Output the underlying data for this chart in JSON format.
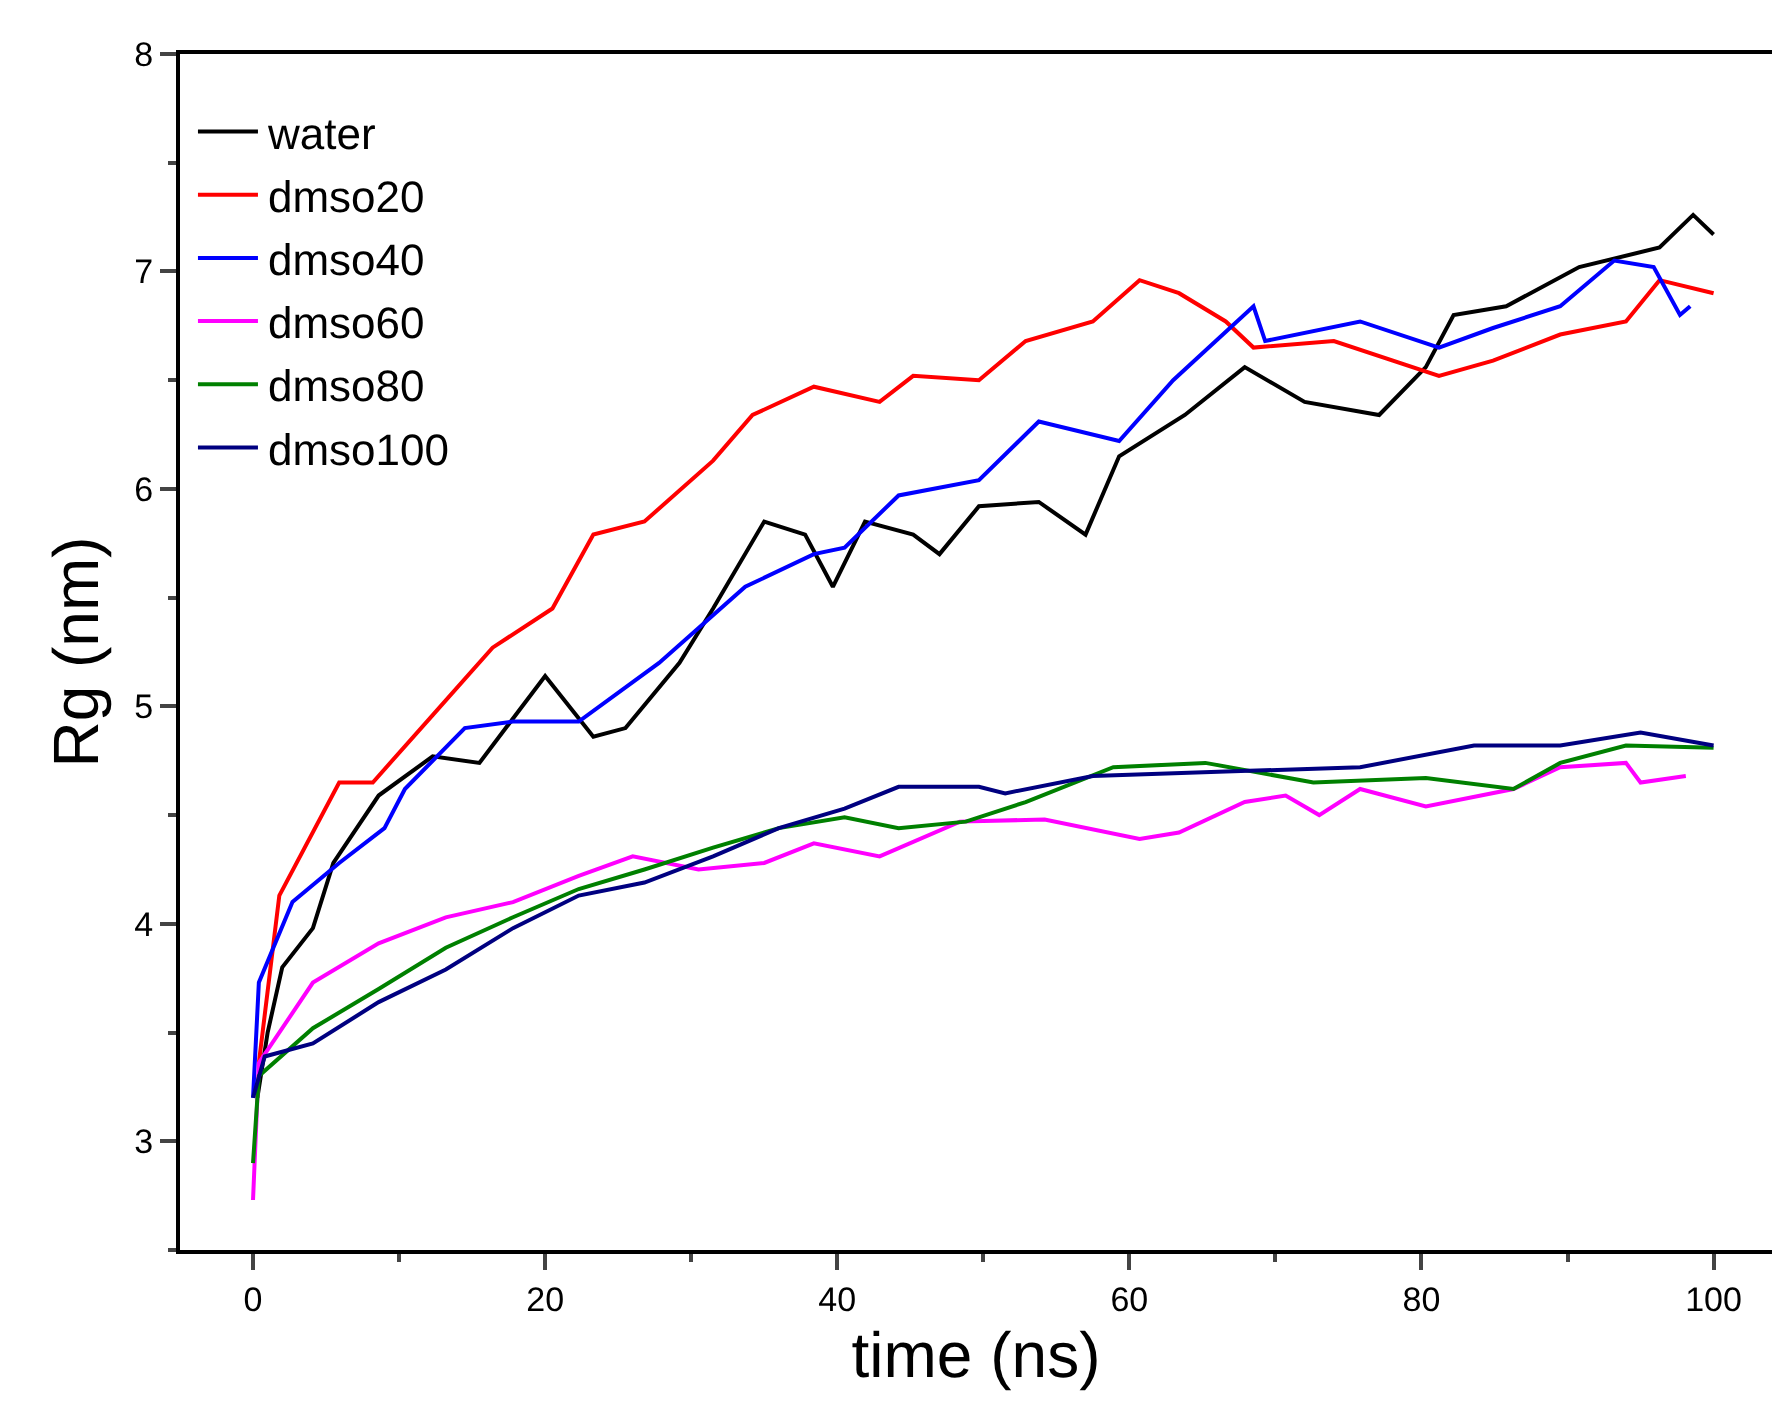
{
  "chart_data": {
    "type": "line",
    "xlabel": "time (ns)",
    "ylabel": "Rg (nm)",
    "xlim": [
      -5,
      104
    ],
    "ylim": [
      2.5,
      8
    ],
    "xticks": [
      0,
      20,
      40,
      60,
      80,
      100
    ],
    "yticks": [
      3,
      4,
      5,
      6,
      7,
      8
    ],
    "grid": false,
    "legend": "top left",
    "marker": "none",
    "line_style": "solid",
    "series": [
      {
        "name": "water",
        "color": "#000000",
        "x": [
          0.3,
          1,
          2,
          4.1,
          5.5,
          8.6,
          12.3,
          15.5,
          20,
          23.3,
          25.5,
          29.2,
          31.5,
          35,
          37.8,
          39.7,
          41.9,
          45.2,
          47,
          49.7,
          53.8,
          57,
          59.3,
          63.8,
          67.9,
          72,
          77.1,
          80.3,
          82.2,
          85.8,
          90.8,
          96.3,
          98.6,
          100
        ],
        "values": [
          3.2,
          3.5,
          3.8,
          3.98,
          4.28,
          4.59,
          4.77,
          4.74,
          5.14,
          4.86,
          4.9,
          5.2,
          5.45,
          5.85,
          5.79,
          5.55,
          5.85,
          5.79,
          5.7,
          5.92,
          5.94,
          5.79,
          6.15,
          6.34,
          6.56,
          6.4,
          6.34,
          6.56,
          6.8,
          6.84,
          7.02,
          7.11,
          7.26,
          7.17
        ]
      },
      {
        "name": "dmso20",
        "color": "#ff0000",
        "x": [
          0.4,
          1.8,
          5.9,
          8.2,
          12.3,
          16.4,
          20.5,
          23.3,
          26.8,
          31.5,
          34.2,
          38.4,
          42.9,
          45.2,
          49.7,
          52.9,
          57.5,
          60.7,
          63.4,
          66.6,
          68.5,
          74,
          81.2,
          84.9,
          89.5,
          94,
          96.3,
          100
        ],
        "values": [
          3.36,
          4.13,
          4.65,
          4.65,
          4.96,
          5.27,
          5.45,
          5.79,
          5.85,
          6.13,
          6.34,
          6.47,
          6.4,
          6.52,
          6.5,
          6.68,
          6.77,
          6.96,
          6.9,
          6.77,
          6.65,
          6.68,
          6.52,
          6.59,
          6.71,
          6.77,
          6.96,
          6.9
        ]
      },
      {
        "name": "dmso40",
        "color": "#0000ff",
        "x": [
          0,
          0.4,
          2.7,
          5.9,
          9,
          10.4,
          14.5,
          17.8,
          22.3,
          27.8,
          33.7,
          38.4,
          40.5,
          44.2,
          49.7,
          53.8,
          59.3,
          63,
          68.5,
          69.3,
          75.8,
          81.2,
          84.9,
          89.5,
          93.2,
          95.9,
          97.7,
          98.4
        ],
        "values": [
          3.2,
          3.73,
          4.1,
          4.28,
          4.44,
          4.62,
          4.9,
          4.93,
          4.93,
          5.2,
          5.55,
          5.7,
          5.73,
          5.97,
          6.04,
          6.31,
          6.22,
          6.5,
          6.84,
          6.68,
          6.77,
          6.65,
          6.74,
          6.84,
          7.05,
          7.02,
          6.8,
          6.84
        ]
      },
      {
        "name": "dmso60",
        "color": "#ff00ff",
        "x": [
          0,
          0.4,
          4.1,
          8.6,
          13.2,
          17.8,
          22.3,
          26,
          30.5,
          35,
          38.4,
          42.9,
          48.4,
          54.2,
          60.7,
          63.4,
          67.9,
          70.7,
          73,
          75.8,
          80.3,
          86.3,
          89.5,
          94,
          95,
          98.1
        ],
        "values": [
          2.73,
          3.36,
          3.73,
          3.91,
          4.03,
          4.1,
          4.22,
          4.31,
          4.25,
          4.28,
          4.37,
          4.31,
          4.47,
          4.48,
          4.39,
          4.42,
          4.56,
          4.59,
          4.5,
          4.62,
          4.54,
          4.62,
          4.72,
          4.74,
          4.65,
          4.68
        ]
      },
      {
        "name": "dmso80",
        "color": "#008000",
        "x": [
          0,
          0.4,
          4.1,
          8.6,
          13.2,
          17.8,
          22.3,
          26.8,
          31.5,
          36,
          40.5,
          44.2,
          48.8,
          52.9,
          58.9,
          65.2,
          72.6,
          80.3,
          86.3,
          89.5,
          94,
          100
        ],
        "values": [
          2.9,
          3.3,
          3.52,
          3.7,
          3.89,
          4.03,
          4.16,
          4.25,
          4.35,
          4.44,
          4.49,
          4.44,
          4.47,
          4.56,
          4.72,
          4.74,
          4.65,
          4.67,
          4.62,
          4.74,
          4.82,
          4.81
        ]
      },
      {
        "name": "dmso100",
        "color": "#000080",
        "x": [
          0,
          0.8,
          4.1,
          8.6,
          13.2,
          17.8,
          22.3,
          26.8,
          31.5,
          36,
          40.5,
          44.2,
          49.7,
          51.5,
          57.5,
          66.6,
          75.8,
          83.6,
          89.5,
          95,
          100
        ],
        "values": [
          3.2,
          3.39,
          3.45,
          3.64,
          3.79,
          3.98,
          4.13,
          4.19,
          4.31,
          4.44,
          4.53,
          4.63,
          4.63,
          4.6,
          4.68,
          4.7,
          4.72,
          4.82,
          4.82,
          4.88,
          4.82
        ]
      }
    ]
  }
}
